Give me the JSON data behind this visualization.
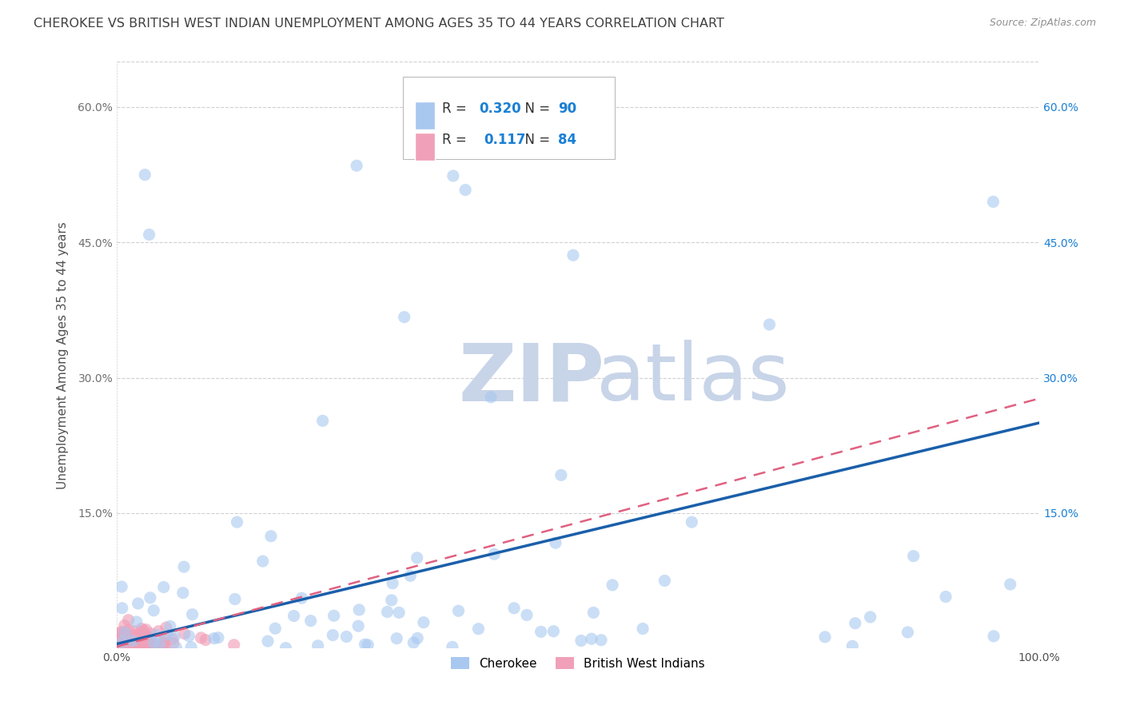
{
  "title": "CHEROKEE VS BRITISH WEST INDIAN UNEMPLOYMENT AMONG AGES 35 TO 44 YEARS CORRELATION CHART",
  "source": "Source: ZipAtlas.com",
  "ylabel": "Unemployment Among Ages 35 to 44 years",
  "xlabel": "",
  "xlim": [
    0,
    1.0
  ],
  "ylim": [
    0,
    0.65
  ],
  "xticks": [
    0,
    0.25,
    0.5,
    0.75,
    1.0
  ],
  "xticklabels": [
    "0.0%",
    "",
    "",
    "",
    "100.0%"
  ],
  "yticks": [
    0,
    0.15,
    0.3,
    0.45,
    0.6
  ],
  "yticklabels": [
    "",
    "15.0%",
    "30.0%",
    "45.0%",
    "60.0%"
  ],
  "cherokee_R": 0.32,
  "cherokee_N": 90,
  "bwi_R": 0.117,
  "bwi_N": 84,
  "cherokee_color": "#a8c8f0",
  "bwi_color": "#f0a0b8",
  "cherokee_line_color": "#1a5faa",
  "bwi_line_color": "#e06080",
  "background_color": "#ffffff",
  "grid_color": "#d0d0d0",
  "watermark_zip": "ZIP",
  "watermark_atlas": "atlas",
  "watermark_color": "#c8d4e8",
  "title_color": "#404040",
  "source_color": "#909090",
  "legend_R_color": "#1a7fd4",
  "legend_N_color": "#1a7fd4",
  "cherokee_line_intercept": 0.005,
  "cherokee_line_slope": 0.245,
  "bwi_line_intercept": 0.002,
  "bwi_line_slope": 0.275
}
